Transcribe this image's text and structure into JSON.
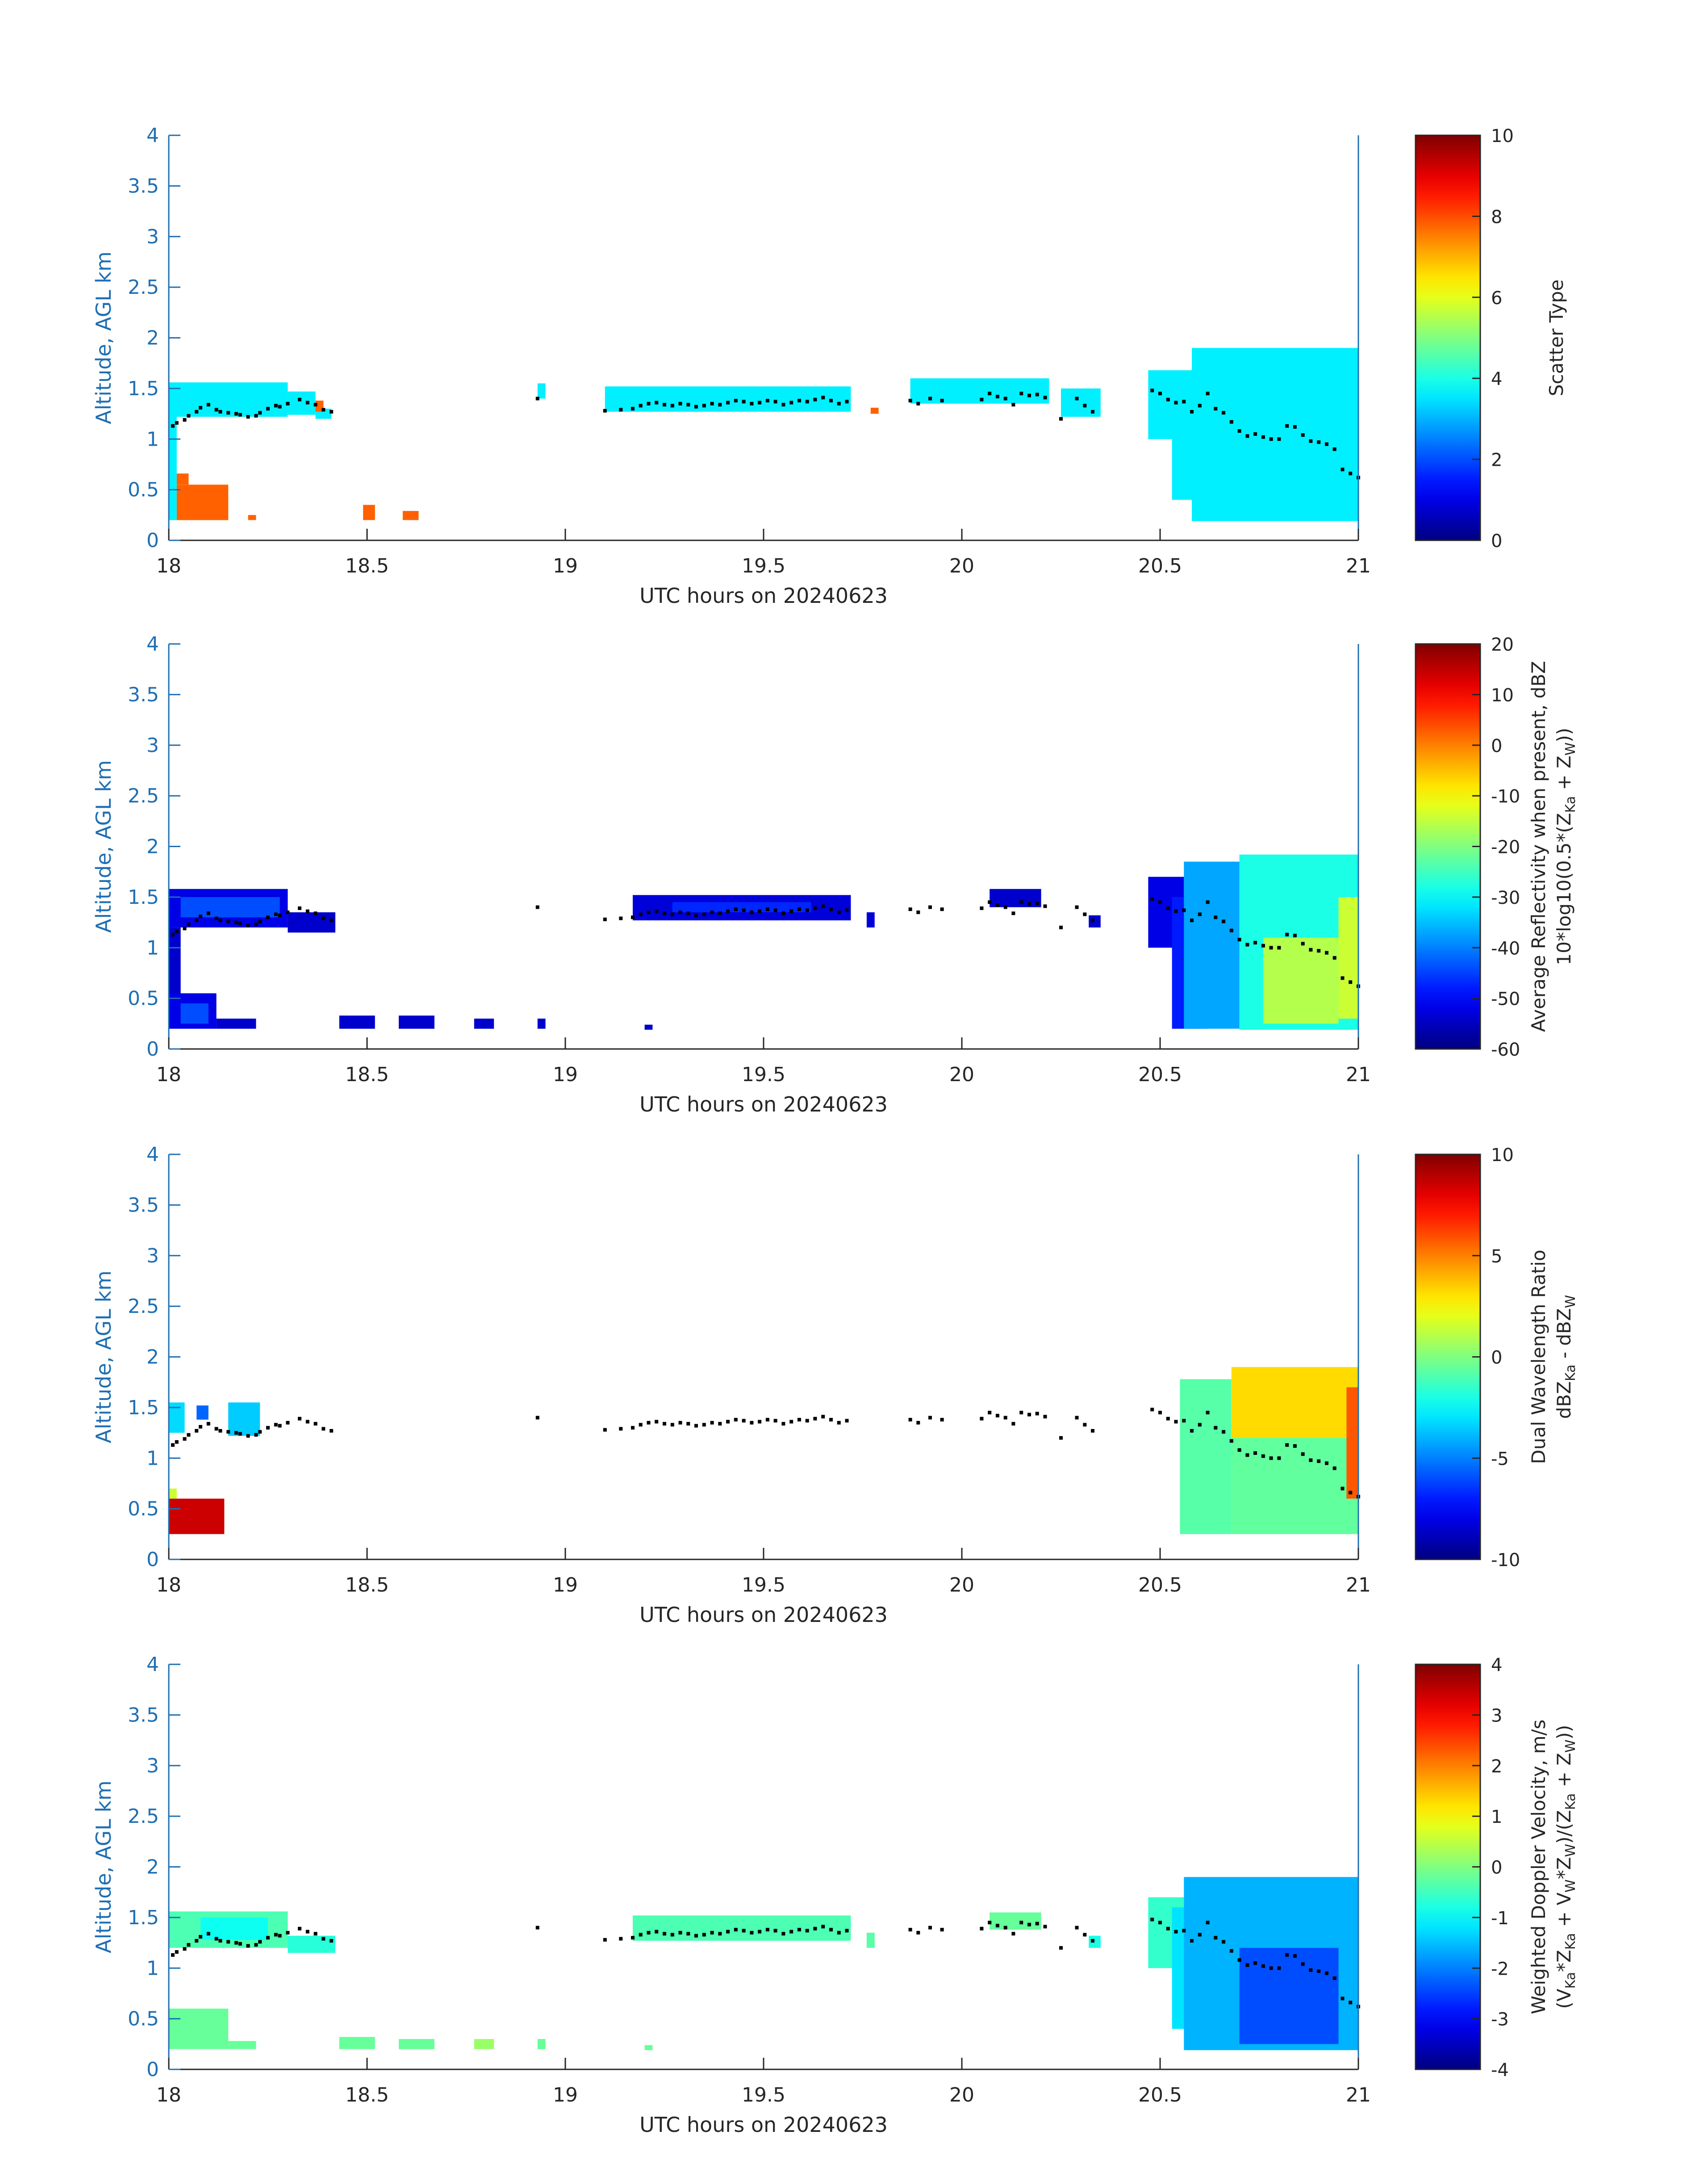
{
  "figure": {
    "background": "#ffffff",
    "axis_color": "#1f6fb3",
    "text_color": "#262626",
    "colormap": "jet",
    "height_marker_color": "#000000"
  },
  "chart_data": [
    {
      "type": "heatmap",
      "id": "scatter-type",
      "xlabel": "UTC hours on 20240623",
      "ylabel": "Altitude, AGL km",
      "xlim": [
        18,
        21
      ],
      "ylim": [
        0,
        4
      ],
      "xticks": [
        "18",
        "18.5",
        "19",
        "19.5",
        "20",
        "20.5",
        "21"
      ],
      "yticks": [
        "0",
        "0.5",
        "1",
        "1.5",
        "2",
        "2.5",
        "3",
        "3.5",
        "4"
      ],
      "colorbar": {
        "label_lines": [
          "Scatter Type"
        ],
        "range": [
          0,
          10
        ],
        "ticks": [
          "0",
          "2",
          "4",
          "6",
          "8",
          "10"
        ]
      },
      "regions": [
        {
          "t": [
            18.0,
            18.3
          ],
          "z": [
            1.22,
            1.56
          ],
          "value": 3.6
        },
        {
          "t": [
            18.3,
            18.37
          ],
          "z": [
            1.24,
            1.47
          ],
          "value": 3.6
        },
        {
          "t": [
            18.37,
            18.41
          ],
          "z": [
            1.2,
            1.3
          ],
          "value": 3.6
        },
        {
          "t": [
            18.37,
            18.39
          ],
          "z": [
            1.27,
            1.38
          ],
          "value": 7.8
        },
        {
          "t": [
            18.0,
            18.02
          ],
          "z": [
            0.2,
            1.22
          ],
          "value": 3.6
        },
        {
          "t": [
            18.02,
            18.15
          ],
          "z": [
            0.2,
            0.55
          ],
          "value": 7.8
        },
        {
          "t": [
            18.02,
            18.05
          ],
          "z": [
            0.55,
            0.66
          ],
          "value": 7.8
        },
        {
          "t": [
            18.2,
            18.22
          ],
          "z": [
            0.2,
            0.25
          ],
          "value": 7.8
        },
        {
          "t": [
            18.49,
            18.52
          ],
          "z": [
            0.2,
            0.35
          ],
          "value": 7.8
        },
        {
          "t": [
            18.59,
            18.63
          ],
          "z": [
            0.2,
            0.29
          ],
          "value": 7.8
        },
        {
          "t": [
            18.93,
            18.95
          ],
          "z": [
            1.4,
            1.55
          ],
          "value": 3.6
        },
        {
          "t": [
            19.1,
            19.72
          ],
          "z": [
            1.27,
            1.52
          ],
          "value": 3.6
        },
        {
          "t": [
            19.77,
            19.79
          ],
          "z": [
            1.25,
            1.31
          ],
          "value": 7.8
        },
        {
          "t": [
            19.87,
            20.22
          ],
          "z": [
            1.35,
            1.6
          ],
          "value": 3.6
        },
        {
          "t": [
            20.25,
            20.35
          ],
          "z": [
            1.22,
            1.5
          ],
          "value": 3.6
        },
        {
          "t": [
            20.47,
            20.58
          ],
          "z": [
            1.0,
            1.68
          ],
          "value": 3.6
        },
        {
          "t": [
            20.53,
            20.6
          ],
          "z": [
            0.4,
            1.6
          ],
          "value": 3.6
        },
        {
          "t": [
            20.58,
            21.0
          ],
          "z": [
            0.19,
            1.9
          ],
          "value": 3.6
        }
      ]
    },
    {
      "type": "heatmap",
      "id": "reflectivity",
      "xlabel": "UTC hours on 20240623",
      "ylabel": "Altitude, AGL km",
      "xlim": [
        18,
        21
      ],
      "ylim": [
        0,
        4
      ],
      "xticks": [
        "18",
        "18.5",
        "19",
        "19.5",
        "20",
        "20.5",
        "21"
      ],
      "yticks": [
        "0",
        "0.5",
        "1",
        "1.5",
        "2",
        "2.5",
        "3",
        "3.5",
        "4"
      ],
      "colorbar": {
        "label_lines": [
          "Average Reflectivity when present, dBZ",
          "10*log10(0.5*(Z",
          "Ka",
          " + Z",
          "W",
          "))"
        ],
        "range": [
          -60,
          20
        ],
        "ticks": [
          "-60",
          "-50",
          "-40",
          "-30",
          "-20",
          "-10",
          "0",
          "10",
          "20"
        ]
      },
      "regions": [
        {
          "t": [
            18.0,
            18.3
          ],
          "z": [
            1.2,
            1.58
          ],
          "value": -52
        },
        {
          "t": [
            18.03,
            18.28
          ],
          "z": [
            1.3,
            1.5
          ],
          "value": -44
        },
        {
          "t": [
            18.3,
            18.42
          ],
          "z": [
            1.15,
            1.35
          ],
          "value": -54
        },
        {
          "t": [
            18.0,
            18.03
          ],
          "z": [
            0.5,
            1.2
          ],
          "value": -54
        },
        {
          "t": [
            18.0,
            18.12
          ],
          "z": [
            0.2,
            0.55
          ],
          "value": -52
        },
        {
          "t": [
            18.03,
            18.1
          ],
          "z": [
            0.25,
            0.45
          ],
          "value": -44
        },
        {
          "t": [
            18.12,
            18.22
          ],
          "z": [
            0.2,
            0.3
          ],
          "value": -54
        },
        {
          "t": [
            18.43,
            18.52
          ],
          "z": [
            0.2,
            0.33
          ],
          "value": -54
        },
        {
          "t": [
            18.58,
            18.67
          ],
          "z": [
            0.2,
            0.33
          ],
          "value": -54
        },
        {
          "t": [
            18.77,
            18.82
          ],
          "z": [
            0.2,
            0.3
          ],
          "value": -54
        },
        {
          "t": [
            18.93,
            18.95
          ],
          "z": [
            0.2,
            0.3
          ],
          "value": -54
        },
        {
          "t": [
            19.2,
            19.22
          ],
          "z": [
            0.19,
            0.24
          ],
          "value": -54
        },
        {
          "t": [
            19.17,
            19.72
          ],
          "z": [
            1.27,
            1.52
          ],
          "value": -53
        },
        {
          "t": [
            19.27,
            19.62
          ],
          "z": [
            1.35,
            1.45
          ],
          "value": -47
        },
        {
          "t": [
            19.76,
            19.78
          ],
          "z": [
            1.2,
            1.35
          ],
          "value": -53
        },
        {
          "t": [
            20.07,
            20.2
          ],
          "z": [
            1.4,
            1.58
          ],
          "value": -54
        },
        {
          "t": [
            20.32,
            20.35
          ],
          "z": [
            1.2,
            1.32
          ],
          "value": -54
        },
        {
          "t": [
            20.47,
            20.56
          ],
          "z": [
            1.0,
            1.7
          ],
          "value": -52
        },
        {
          "t": [
            20.53,
            20.62
          ],
          "z": [
            0.2,
            1.5
          ],
          "value": -48
        },
        {
          "t": [
            20.56,
            20.7
          ],
          "z": [
            0.2,
            1.85
          ],
          "value": -37
        },
        {
          "t": [
            20.7,
            21.0
          ],
          "z": [
            0.19,
            1.92
          ],
          "value": -28
        },
        {
          "t": [
            20.76,
            20.95
          ],
          "z": [
            0.25,
            1.1
          ],
          "value": -16
        },
        {
          "t": [
            20.95,
            21.0
          ],
          "z": [
            0.3,
            1.5
          ],
          "value": -14
        }
      ]
    },
    {
      "type": "heatmap",
      "id": "dual-wavelength-ratio",
      "xlabel": "UTC hours on 20240623",
      "ylabel": "Altitude, AGL km",
      "xlim": [
        18,
        21
      ],
      "ylim": [
        0,
        4
      ],
      "xticks": [
        "18",
        "18.5",
        "19",
        "19.5",
        "20",
        "20.5",
        "21"
      ],
      "yticks": [
        "0",
        "0.5",
        "1",
        "1.5",
        "2",
        "2.5",
        "3",
        "3.5",
        "4"
      ],
      "colorbar": {
        "label_lines": [
          "Dual Wavelength Ratio",
          "dBZ",
          "Ka",
          " - dBZ",
          "W"
        ],
        "range": [
          -10,
          10
        ],
        "ticks": [
          "-10",
          "-5",
          "0",
          "5",
          "10"
        ]
      },
      "regions": [
        {
          "t": [
            18.0,
            18.04
          ],
          "z": [
            1.25,
            1.55
          ],
          "value": -3.2
        },
        {
          "t": [
            18.07,
            18.1
          ],
          "z": [
            1.38,
            1.52
          ],
          "value": -5.5
        },
        {
          "t": [
            18.15,
            18.23
          ],
          "z": [
            1.22,
            1.55
          ],
          "value": -3.5
        },
        {
          "t": [
            18.0,
            18.14
          ],
          "z": [
            0.25,
            0.6
          ],
          "value": 8.5
        },
        {
          "t": [
            18.0,
            18.02
          ],
          "z": [
            0.6,
            0.7
          ],
          "value": 1.5
        },
        {
          "t": [
            20.55,
            20.68
          ],
          "z": [
            0.25,
            1.78
          ],
          "value": -0.8
        },
        {
          "t": [
            20.68,
            21.0
          ],
          "z": [
            0.25,
            1.2
          ],
          "value": -0.6
        },
        {
          "t": [
            20.68,
            21.0
          ],
          "z": [
            1.2,
            1.9
          ],
          "value": 3.2
        },
        {
          "t": [
            20.97,
            21.0
          ],
          "z": [
            0.6,
            1.7
          ],
          "value": 5.8
        }
      ]
    },
    {
      "type": "heatmap",
      "id": "doppler-velocity",
      "xlabel": "UTC hours on 20240623",
      "ylabel": "Altitude, AGL km",
      "xlim": [
        18,
        21
      ],
      "ylim": [
        0,
        4
      ],
      "xticks": [
        "18",
        "18.5",
        "19",
        "19.5",
        "20",
        "20.5",
        "21"
      ],
      "yticks": [
        "0",
        "0.5",
        "1",
        "1.5",
        "2",
        "2.5",
        "3",
        "3.5",
        "4"
      ],
      "colorbar": {
        "label_lines": [
          "Weighted Doppler Velocity, m/s",
          "(V",
          "Ka",
          "*Z",
          "Ka",
          " + V",
          "W",
          "*Z",
          "W",
          ")/(Z",
          "Ka",
          " + Z",
          "W",
          "))"
        ],
        "range": [
          -4,
          4
        ],
        "ticks": [
          "-4",
          "-3",
          "-2",
          "-1",
          "0",
          "1",
          "2",
          "3",
          "4"
        ]
      },
      "regions": [
        {
          "t": [
            18.0,
            18.3
          ],
          "z": [
            1.2,
            1.56
          ],
          "value": -0.4
        },
        {
          "t": [
            18.08,
            18.25
          ],
          "z": [
            1.28,
            1.5
          ],
          "value": -0.9
        },
        {
          "t": [
            18.3,
            18.42
          ],
          "z": [
            1.15,
            1.32
          ],
          "value": -0.7
        },
        {
          "t": [
            18.0,
            18.15
          ],
          "z": [
            0.2,
            0.6
          ],
          "value": -0.2
        },
        {
          "t": [
            18.15,
            18.22
          ],
          "z": [
            0.2,
            0.28
          ],
          "value": -0.2
        },
        {
          "t": [
            18.43,
            18.52
          ],
          "z": [
            0.2,
            0.32
          ],
          "value": -0.2
        },
        {
          "t": [
            18.58,
            18.67
          ],
          "z": [
            0.2,
            0.3
          ],
          "value": -0.2
        },
        {
          "t": [
            18.77,
            18.82
          ],
          "z": [
            0.2,
            0.3
          ],
          "value": 0.2
        },
        {
          "t": [
            18.93,
            18.95
          ],
          "z": [
            0.2,
            0.3
          ],
          "value": -0.2
        },
        {
          "t": [
            19.2,
            19.22
          ],
          "z": [
            0.19,
            0.24
          ],
          "value": -0.2
        },
        {
          "t": [
            19.17,
            19.72
          ],
          "z": [
            1.27,
            1.52
          ],
          "value": -0.4
        },
        {
          "t": [
            19.76,
            19.78
          ],
          "z": [
            1.2,
            1.35
          ],
          "value": -0.3
        },
        {
          "t": [
            20.07,
            20.2
          ],
          "z": [
            1.38,
            1.55
          ],
          "value": -0.2
        },
        {
          "t": [
            20.32,
            20.35
          ],
          "z": [
            1.2,
            1.32
          ],
          "value": -0.8
        },
        {
          "t": [
            20.47,
            20.56
          ],
          "z": [
            1.0,
            1.7
          ],
          "value": -0.6
        },
        {
          "t": [
            20.53,
            20.62
          ],
          "z": [
            0.4,
            1.6
          ],
          "value": -1.2
        },
        {
          "t": [
            20.56,
            21.0
          ],
          "z": [
            0.19,
            1.9
          ],
          "value": -1.6
        },
        {
          "t": [
            20.7,
            20.95
          ],
          "z": [
            0.25,
            1.2
          ],
          "value": -2.4
        }
      ]
    }
  ],
  "height_markers": {
    "t": [
      18.01,
      18.02,
      18.04,
      18.05,
      18.07,
      18.08,
      18.1,
      18.12,
      18.13,
      18.15,
      18.17,
      18.18,
      18.2,
      18.22,
      18.23,
      18.25,
      18.27,
      18.28,
      18.3,
      18.33,
      18.35,
      18.37,
      18.39,
      18.41,
      18.93,
      19.1,
      19.14,
      19.17,
      19.19,
      19.21,
      19.23,
      19.25,
      19.27,
      19.29,
      19.31,
      19.33,
      19.35,
      19.37,
      19.39,
      19.41,
      19.43,
      19.45,
      19.47,
      19.49,
      19.51,
      19.53,
      19.55,
      19.57,
      19.59,
      19.61,
      19.63,
      19.65,
      19.67,
      19.69,
      19.71,
      19.87,
      19.89,
      19.92,
      19.95,
      20.05,
      20.07,
      20.09,
      20.11,
      20.13,
      20.15,
      20.17,
      20.19,
      20.21,
      20.25,
      20.29,
      20.31,
      20.33,
      20.48,
      20.5,
      20.52,
      20.54,
      20.56,
      20.58,
      20.6,
      20.62,
      20.64,
      20.66,
      20.68,
      20.7,
      20.72,
      20.74,
      20.76,
      20.78,
      20.8,
      20.82,
      20.84,
      20.86,
      20.88,
      20.9,
      20.92,
      20.94,
      20.96,
      20.98,
      21.0
    ],
    "z": [
      1.13,
      1.16,
      1.19,
      1.23,
      1.27,
      1.31,
      1.34,
      1.29,
      1.27,
      1.26,
      1.25,
      1.24,
      1.22,
      1.23,
      1.26,
      1.3,
      1.33,
      1.32,
      1.35,
      1.39,
      1.36,
      1.34,
      1.29,
      1.27,
      1.4,
      1.28,
      1.29,
      1.3,
      1.33,
      1.35,
      1.36,
      1.34,
      1.33,
      1.35,
      1.34,
      1.32,
      1.33,
      1.35,
      1.34,
      1.36,
      1.38,
      1.37,
      1.35,
      1.36,
      1.38,
      1.37,
      1.34,
      1.36,
      1.38,
      1.37,
      1.39,
      1.41,
      1.38,
      1.35,
      1.37,
      1.38,
      1.35,
      1.4,
      1.38,
      1.39,
      1.45,
      1.42,
      1.4,
      1.34,
      1.45,
      1.43,
      1.44,
      1.41,
      1.2,
      1.4,
      1.33,
      1.27,
      1.48,
      1.45,
      1.39,
      1.36,
      1.37,
      1.27,
      1.33,
      1.45,
      1.3,
      1.26,
      1.17,
      1.08,
      1.03,
      1.05,
      1.02,
      1.0,
      1.0,
      1.13,
      1.12,
      1.04,
      0.98,
      0.97,
      0.95,
      0.9,
      0.7,
      0.66,
      0.62
    ]
  }
}
